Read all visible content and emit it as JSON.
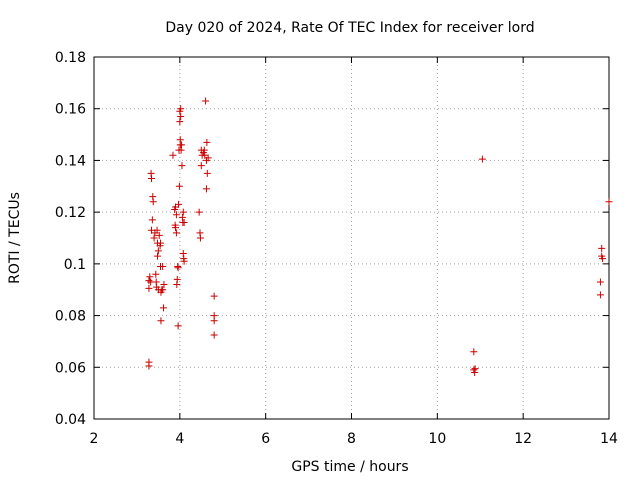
{
  "chart_data": {
    "type": "scatter",
    "title": "Day 020 of 2024, Rate Of TEC Index for receiver lord",
    "xlabel": "GPS time / hours",
    "ylabel": "ROTI / TECUs",
    "xlim": [
      2,
      14
    ],
    "ylim": [
      0.04,
      0.18
    ],
    "x_ticks": [
      2,
      4,
      6,
      8,
      10,
      12,
      14
    ],
    "x_tick_labels": [
      "2",
      "4",
      "6",
      "8",
      "10",
      "12",
      "14"
    ],
    "y_ticks": [
      0.04,
      0.06,
      0.08,
      0.1,
      0.12,
      0.14,
      0.16,
      0.18
    ],
    "y_tick_labels": [
      "0.04",
      "0.06",
      "0.08",
      "0.1",
      "0.12",
      "0.14",
      "0.16",
      "0.18"
    ],
    "grid": true,
    "marker": "plus",
    "color": "#cc0000",
    "points": [
      [
        3.28,
        0.0935
      ],
      [
        3.28,
        0.0905
      ],
      [
        3.28,
        0.062
      ],
      [
        3.28,
        0.0605
      ],
      [
        3.3,
        0.095
      ],
      [
        3.32,
        0.093
      ],
      [
        3.33,
        0.135
      ],
      [
        3.34,
        0.133
      ],
      [
        3.34,
        0.113
      ],
      [
        3.36,
        0.117
      ],
      [
        3.37,
        0.126
      ],
      [
        3.38,
        0.124
      ],
      [
        3.4,
        0.11
      ],
      [
        3.42,
        0.112
      ],
      [
        3.44,
        0.096
      ],
      [
        3.45,
        0.093
      ],
      [
        3.46,
        0.091
      ],
      [
        3.47,
        0.113
      ],
      [
        3.48,
        0.108
      ],
      [
        3.48,
        0.103
      ],
      [
        3.5,
        0.105
      ],
      [
        3.5,
        0.09
      ],
      [
        3.52,
        0.111
      ],
      [
        3.54,
        0.107
      ],
      [
        3.55,
        0.108
      ],
      [
        3.55,
        0.099
      ],
      [
        3.56,
        0.089
      ],
      [
        3.56,
        0.078
      ],
      [
        3.58,
        0.09
      ],
      [
        3.6,
        0.099
      ],
      [
        3.6,
        0.09
      ],
      [
        3.62,
        0.083
      ],
      [
        3.63,
        0.092
      ],
      [
        3.84,
        0.142
      ],
      [
        3.88,
        0.121
      ],
      [
        3.89,
        0.115
      ],
      [
        3.9,
        0.122
      ],
      [
        3.9,
        0.114
      ],
      [
        3.92,
        0.119
      ],
      [
        3.92,
        0.112
      ],
      [
        3.93,
        0.092
      ],
      [
        3.94,
        0.094
      ],
      [
        3.95,
        0.099
      ],
      [
        3.96,
        0.076
      ],
      [
        3.96,
        0.0985
      ],
      [
        3.97,
        0.123
      ],
      [
        3.98,
        0.144
      ],
      [
        3.99,
        0.13
      ],
      [
        4.0,
        0.159
      ],
      [
        4.0,
        0.155
      ],
      [
        4.01,
        0.148
      ],
      [
        4.01,
        0.146
      ],
      [
        4.02,
        0.16
      ],
      [
        4.02,
        0.157
      ],
      [
        4.03,
        0.144
      ],
      [
        4.04,
        0.146
      ],
      [
        4.05,
        0.138
      ],
      [
        4.06,
        0.118
      ],
      [
        4.07,
        0.116
      ],
      [
        4.08,
        0.12
      ],
      [
        4.08,
        0.104
      ],
      [
        4.09,
        0.102
      ],
      [
        4.1,
        0.116
      ],
      [
        4.1,
        0.101
      ],
      [
        4.45,
        0.12
      ],
      [
        4.47,
        0.112
      ],
      [
        4.48,
        0.11
      ],
      [
        4.5,
        0.144
      ],
      [
        4.5,
        0.138
      ],
      [
        4.52,
        0.142
      ],
      [
        4.55,
        0.143
      ],
      [
        4.57,
        0.144
      ],
      [
        4.58,
        0.142
      ],
      [
        4.6,
        0.163
      ],
      [
        4.62,
        0.14
      ],
      [
        4.62,
        0.129
      ],
      [
        4.63,
        0.147
      ],
      [
        4.64,
        0.135
      ],
      [
        4.66,
        0.141
      ],
      [
        4.8,
        0.0875
      ],
      [
        4.8,
        0.08
      ],
      [
        4.8,
        0.078
      ],
      [
        4.8,
        0.0725
      ],
      [
        10.85,
        0.066
      ],
      [
        10.85,
        0.059
      ],
      [
        10.87,
        0.058
      ],
      [
        10.88,
        0.0595
      ],
      [
        11.05,
        0.1405
      ],
      [
        13.8,
        0.093
      ],
      [
        13.8,
        0.088
      ],
      [
        13.83,
        0.106
      ],
      [
        13.83,
        0.103
      ],
      [
        13.85,
        0.102
      ],
      [
        14.0,
        0.124
      ]
    ]
  }
}
